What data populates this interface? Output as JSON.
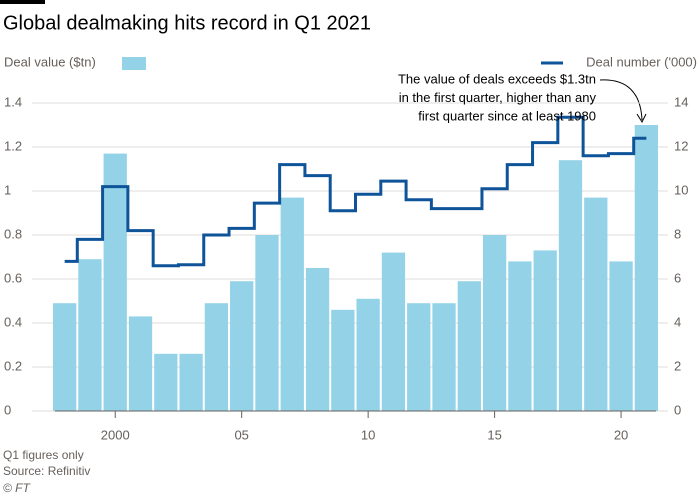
{
  "chart_data": {
    "type": "bar-step",
    "title": "Global dealmaking hits record in Q1 2021",
    "x": [
      1998,
      1999,
      2000,
      2001,
      2002,
      2003,
      2004,
      2005,
      2006,
      2007,
      2008,
      2009,
      2010,
      2011,
      2012,
      2013,
      2014,
      2015,
      2016,
      2017,
      2018,
      2019,
      2020,
      2021
    ],
    "xlim": [
      1997.5,
      2021.5
    ],
    "xticks": [
      2000,
      {
        "value": 2005,
        "label": "05"
      },
      {
        "value": 2010,
        "label": "10"
      },
      {
        "value": 2015,
        "label": "15"
      },
      {
        "value": 2020,
        "label": "20"
      }
    ],
    "series": [
      {
        "name": "Deal value ($tn)",
        "color": "#94d2e8",
        "values": [
          0.49,
          0.69,
          1.17,
          0.43,
          0.26,
          0.26,
          0.49,
          0.59,
          0.8,
          0.97,
          0.65,
          0.46,
          0.51,
          0.72,
          0.49,
          0.49,
          0.59,
          0.8,
          0.68,
          0.73,
          1.14,
          0.97,
          0.68,
          1.3
        ]
      },
      {
        "name": "Deal number ('000)",
        "color": "#0f5499",
        "axis": "y2",
        "values": [
          6.8,
          7.8,
          10.2,
          8.2,
          6.6,
          6.65,
          8.0,
          8.3,
          9.45,
          11.2,
          10.7,
          9.1,
          9.85,
          10.45,
          9.6,
          9.2,
          9.2,
          10.1,
          11.2,
          12.2,
          13.35,
          11.6,
          11.7,
          12.4
        ]
      }
    ],
    "ylim": [
      0,
      1.4
    ],
    "yticks": [
      0,
      0.2,
      0.4,
      0.6,
      0.8,
      1.0,
      1.2,
      1.4
    ],
    "y2lim": [
      0,
      14
    ],
    "y2ticks": [
      0,
      2,
      4,
      6,
      8,
      10,
      12,
      14
    ],
    "grid": true,
    "annotation": [
      "The value of deals exceeds $1.3tn",
      "in the first quarter, higher than any",
      "first quarter since at least 1980"
    ],
    "footnote": "Q1 figures only",
    "source": "Source: Refinitiv",
    "credit": "© FT"
  }
}
